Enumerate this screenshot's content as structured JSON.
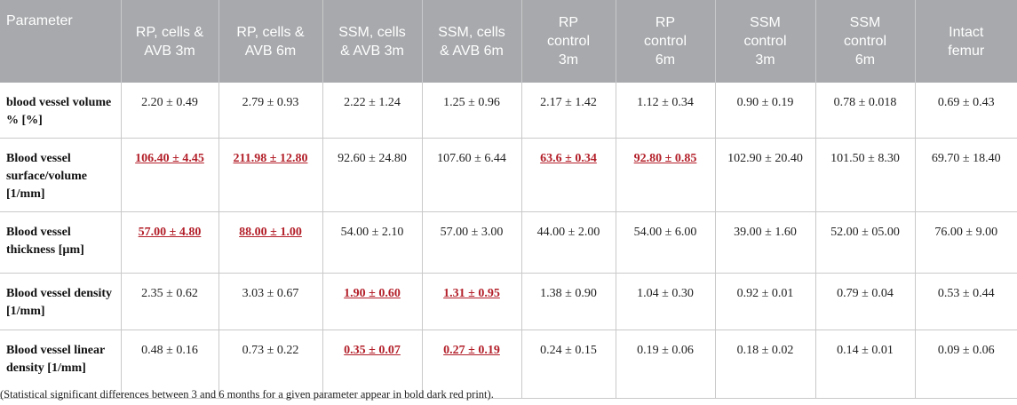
{
  "headers": [
    "Parameter",
    "RP, cells &\nAVB 3m",
    "RP, cells &\nAVB 6m",
    "SSM, cells\n& AVB 3m",
    "SSM, cells\n& AVB 6m",
    "RP\ncontrol\n3m",
    "RP\ncontrol\n6m",
    "SSM\ncontrol\n3m",
    "SSM\ncontrol\n6m",
    "Intact\nfemur"
  ],
  "rows": [
    {
      "parameter": "blood vessel volume % [%]",
      "cells": [
        {
          "text": "2.20 ± 0.49",
          "sig": false
        },
        {
          "text": "2.79 ± 0.93",
          "sig": false
        },
        {
          "text": "2.22 ± 1.24",
          "sig": false
        },
        {
          "text": "1.25 ± 0.96",
          "sig": false
        },
        {
          "text": "2.17 ± 1.42",
          "sig": false
        },
        {
          "text": "1.12 ± 0.34",
          "sig": false
        },
        {
          "text": "0.90 ± 0.19",
          "sig": false
        },
        {
          "text": "0.78 ± 0.018",
          "sig": false
        },
        {
          "text": "0.69 ± 0.43",
          "sig": false
        }
      ]
    },
    {
      "parameter": "Blood vessel surface/volume [1/mm]",
      "cells": [
        {
          "text": "106.40 ± 4.45",
          "sig": true
        },
        {
          "text": "211.98 ± 12.80",
          "sig": true
        },
        {
          "text": "92.60 ± 24.80",
          "sig": false
        },
        {
          "text": "107.60 ± 6.44",
          "sig": false
        },
        {
          "text": "63.6 ± 0.34",
          "sig": true
        },
        {
          "text": "92.80 ± 0.85",
          "sig": true
        },
        {
          "text": "102.90 ± 20.40",
          "sig": false
        },
        {
          "text": "101.50 ± 8.30",
          "sig": false
        },
        {
          "text": "69.70 ± 18.40",
          "sig": false
        }
      ]
    },
    {
      "parameter": "Blood vessel thickness [µm]",
      "cells": [
        {
          "text": "57.00 ± 4.80",
          "sig": true
        },
        {
          "text": "88.00 ± 1.00",
          "sig": true
        },
        {
          "text": "54.00 ± 2.10",
          "sig": false
        },
        {
          "text": "57.00 ± 3.00",
          "sig": false
        },
        {
          "text": "44.00 ± 2.00",
          "sig": false
        },
        {
          "text": "54.00 ± 6.00",
          "sig": false
        },
        {
          "text": "39.00 ± 1.60",
          "sig": false
        },
        {
          "text": "52.00 ± 05.00",
          "sig": false
        },
        {
          "text": "76.00 ± 9.00",
          "sig": false
        }
      ]
    },
    {
      "parameter": "Blood vessel density [1/mm]",
      "cells": [
        {
          "text": "2.35 ± 0.62",
          "sig": false
        },
        {
          "text": "3.03 ± 0.67",
          "sig": false
        },
        {
          "text": "1.90 ± 0.60",
          "sig": true
        },
        {
          "text": "1.31 ± 0.95",
          "sig": true
        },
        {
          "text": "1.38 ± 0.90",
          "sig": false
        },
        {
          "text": "1.04 ± 0.30",
          "sig": false
        },
        {
          "text": "0.92 ± 0.01",
          "sig": false
        },
        {
          "text": "0.79 ± 0.04",
          "sig": false
        },
        {
          "text": "0.53 ± 0.44",
          "sig": false
        }
      ]
    },
    {
      "parameter": "Blood vessel linear density [1/mm]",
      "cells": [
        {
          "text": "0.48 ± 0.16",
          "sig": false
        },
        {
          "text": "0.73 ± 0.22",
          "sig": false
        },
        {
          "text": "0.35 ± 0.07",
          "sig": true
        },
        {
          "text": "0.27 ± 0.19",
          "sig": true
        },
        {
          "text": "0.24 ± 0.15",
          "sig": false
        },
        {
          "text": "0.19 ± 0.06",
          "sig": false
        },
        {
          "text": "0.18 ± 0.02",
          "sig": false
        },
        {
          "text": "0.14 ± 0.01",
          "sig": false
        },
        {
          "text": "0.09 ± 0.06",
          "sig": false
        }
      ]
    }
  ],
  "footnote": "(Statistical significant differences between 3 and 6 months for a given parameter appear in bold dark red print).",
  "colors": {
    "header_bg": "#a7a9ac",
    "significant": "#b3202a"
  }
}
